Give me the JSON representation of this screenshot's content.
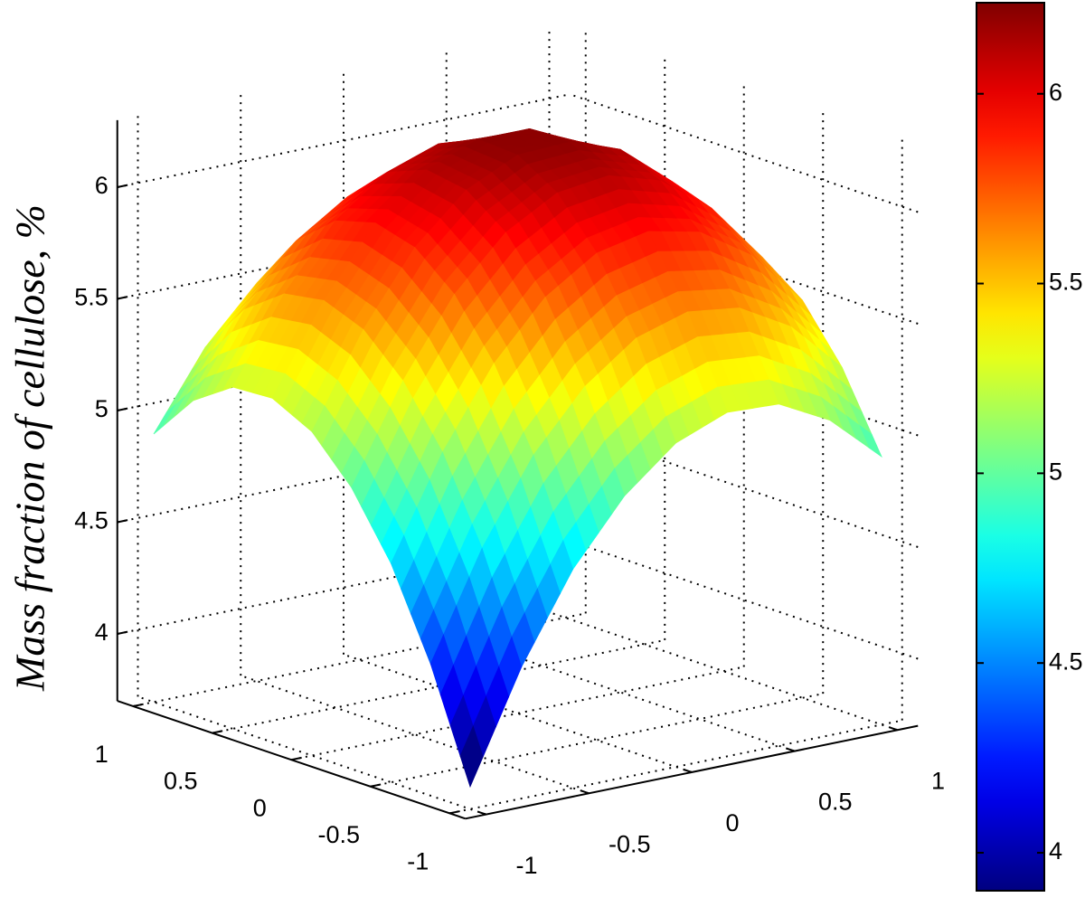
{
  "chart_data": {
    "type": "surface",
    "zlabel": "Mass fraction of cellulose, %",
    "x": [
      -1,
      -0.75,
      -0.5,
      -0.25,
      0,
      0.25,
      0.5,
      0.75,
      1
    ],
    "y": [
      -1,
      -0.75,
      -0.5,
      -0.25,
      0,
      0.25,
      0.5,
      0.75,
      1
    ],
    "z": [
      [
        3.8,
        4.29,
        4.68,
        4.96,
        5.15,
        5.24,
        5.23,
        5.11,
        4.9
      ],
      [
        4.29,
        4.76,
        5.13,
        5.39,
        5.56,
        5.63,
        5.6,
        5.47,
        5.24
      ],
      [
        4.68,
        5.13,
        5.48,
        5.73,
        5.88,
        5.93,
        5.88,
        5.73,
        5.48
      ],
      [
        4.96,
        5.39,
        5.73,
        5.96,
        6.09,
        6.12,
        6.05,
        5.88,
        5.61
      ],
      [
        5.15,
        5.56,
        5.88,
        6.09,
        6.2,
        6.21,
        6.13,
        5.94,
        5.65
      ],
      [
        5.24,
        5.63,
        5.93,
        6.12,
        6.21,
        6.21,
        6.1,
        5.89,
        5.59
      ],
      [
        5.23,
        5.6,
        5.88,
        6.05,
        6.13,
        6.1,
        5.98,
        5.75,
        5.43
      ],
      [
        5.11,
        5.47,
        5.73,
        5.88,
        5.94,
        5.89,
        5.75,
        5.51,
        5.16
      ],
      [
        4.9,
        5.24,
        5.48,
        5.61,
        5.65,
        5.59,
        5.43,
        5.16,
        4.8
      ]
    ],
    "xlim": [
      -1.1,
      1.1
    ],
    "ylim": [
      -1.1,
      1.1
    ],
    "zlim": [
      3.7,
      6.3
    ],
    "xticks": [
      -1,
      -0.5,
      0,
      0.5,
      1
    ],
    "yticks": [
      -1,
      -0.5,
      0,
      0.5,
      1
    ],
    "zticks": [
      4,
      4.5,
      5,
      5.5,
      6
    ],
    "grid": true,
    "colormap": "jet",
    "colorbar": {
      "clim": [
        3.9,
        6.24
      ],
      "ticks": [
        4,
        4.5,
        5,
        5.5,
        6
      ]
    }
  }
}
